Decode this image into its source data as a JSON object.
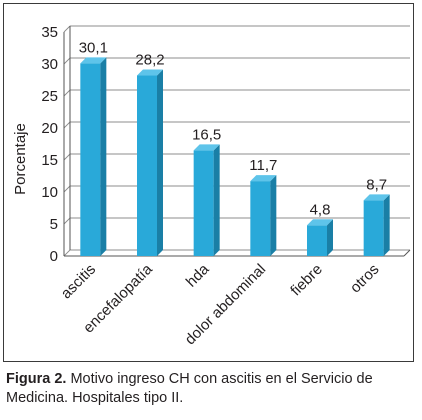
{
  "chart_data": {
    "type": "bar",
    "categories": [
      "ascitis",
      "encefalopatía",
      "hda",
      "dolor abdominal",
      "fiebre",
      "otros"
    ],
    "values": [
      30.1,
      28.2,
      16.5,
      11.7,
      4.8,
      8.7
    ],
    "value_labels": [
      "30,1",
      "28,2",
      "16,5",
      "11,7",
      "4,8",
      "8,7"
    ],
    "ylabel": "Porcentaje",
    "xlabel": "",
    "ylim": [
      0,
      35
    ],
    "yticks": [
      "0",
      "5",
      "10",
      "15",
      "20",
      "25",
      "30",
      "35"
    ],
    "grid": true,
    "style": "3d-column",
    "colors": {
      "bar_front": "#29a9d9",
      "bar_side": "#1a7fa6",
      "bar_top": "#5ec4ea",
      "grid": "#8c8c8c",
      "axis": "#555555"
    }
  },
  "caption": {
    "label": "Figura 2.",
    "text": " Motivo ingreso CH con ascitis en el Servicio de Medicina. Hospitales tipo II."
  }
}
